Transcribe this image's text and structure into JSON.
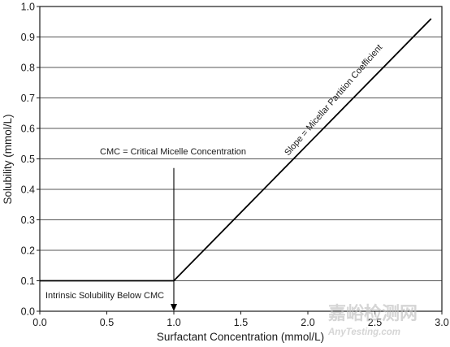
{
  "chart_data": {
    "type": "line",
    "title": "",
    "xlabel": "Surfactant Concentration (mmol/L)",
    "ylabel": "Solubility (mmol/L)",
    "xlim": [
      0,
      3.0
    ],
    "ylim": [
      0,
      1.0
    ],
    "x_ticks": [
      "0.0",
      "0.5",
      "1.0",
      "1.5",
      "2.0",
      "2.5",
      "3.0"
    ],
    "y_ticks": [
      "0.0",
      "0.1",
      "0.2",
      "0.3",
      "0.4",
      "0.5",
      "0.6",
      "0.7",
      "0.8",
      "0.9",
      "1.0"
    ],
    "grid": "horizontal",
    "series": [
      {
        "x": [
          0.0,
          1.0,
          2.92
        ],
        "y": [
          0.1,
          0.1,
          0.96
        ]
      }
    ],
    "annotations": {
      "cmc": {
        "text": "CMC = Critical Micelle Concentration",
        "x": 1.0,
        "arrow_from_y": 0.47,
        "arrow_to_y": 0.0
      },
      "intrinsic": {
        "text": "Intrinsic Solubility Below CMC"
      },
      "slope": {
        "text": "Slope = Micellar Partition Coefficient"
      }
    }
  },
  "watermark": {
    "chinese": "嘉峪检测网",
    "english": "AnyTesting.com"
  }
}
